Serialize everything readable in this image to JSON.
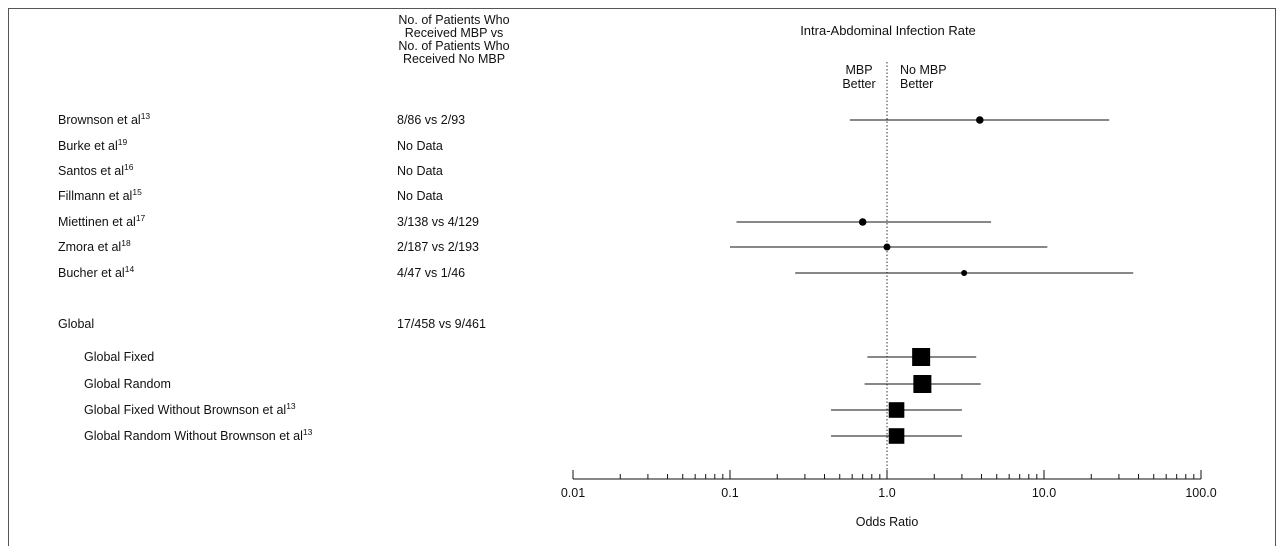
{
  "header": {
    "patients_line1": "No. of Patients Who",
    "patients_line2": "Received MBP vs",
    "patients_line3": "No. of Patients Who",
    "patients_line4": "Received No MBP",
    "plot_title": "Intra-Abdominal Infection Rate",
    "favors_left_line1": "MBP",
    "favors_left_line2": "Better",
    "favors_right_line1": "No MBP",
    "favors_right_line2": "Better"
  },
  "rows": [
    {
      "label": "Brownson et al",
      "ref": "13",
      "counts": "8/86 vs 2/93"
    },
    {
      "label": "Burke et al",
      "ref": "19",
      "counts": "No Data"
    },
    {
      "label": "Santos et al",
      "ref": "16",
      "counts": "No Data"
    },
    {
      "label": "Fillmann et al",
      "ref": "15",
      "counts": "No Data"
    },
    {
      "label": "Miettinen et al",
      "ref": "17",
      "counts": "3/138 vs 4/129"
    },
    {
      "label": "Zmora et al",
      "ref": "18",
      "counts": "2/187 vs 2/193"
    },
    {
      "label": "Bucher et al",
      "ref": "14",
      "counts": "4/47 vs 1/46"
    },
    {
      "label": "Global",
      "ref": "",
      "counts": "17/458 vs 9/461"
    },
    {
      "label": "Global Fixed",
      "ref": "",
      "counts": ""
    },
    {
      "label": "Global Random",
      "ref": "",
      "counts": ""
    },
    {
      "label": "Global Fixed Without Brownson et al",
      "ref": "13",
      "counts": ""
    },
    {
      "label": "Global Random Without Brownson et al",
      "ref": "13",
      "counts": ""
    }
  ],
  "chart_data": {
    "type": "scatter",
    "title": "Intra-Abdominal Infection Rate",
    "xlabel": "Odds Ratio",
    "x_scale": "log",
    "xlim": [
      0.01,
      100
    ],
    "x_ticks": [
      "0.01",
      "0.1",
      "1.0",
      "10.0",
      "100.0"
    ],
    "reference_line": 1.0,
    "points": [
      {
        "study": "Brownson et al13",
        "or": 3.9,
        "ci_low": 0.58,
        "ci_high": 26,
        "marker": "circle",
        "weight": 0.6
      },
      {
        "study": "Miettinen et al17",
        "or": 0.7,
        "ci_low": 0.11,
        "ci_high": 4.6,
        "marker": "circle",
        "weight": 0.6
      },
      {
        "study": "Zmora et al18",
        "or": 1.0,
        "ci_low": 0.1,
        "ci_high": 10.5,
        "marker": "circle",
        "weight": 0.5
      },
      {
        "study": "Bucher et al14",
        "or": 3.1,
        "ci_low": 0.26,
        "ci_high": 37,
        "marker": "circle",
        "weight": 0.35
      },
      {
        "study": "Global Fixed",
        "or": 1.65,
        "ci_low": 0.75,
        "ci_high": 3.7,
        "marker": "square",
        "weight": 1.0
      },
      {
        "study": "Global Random",
        "or": 1.68,
        "ci_low": 0.72,
        "ci_high": 3.95,
        "marker": "square",
        "weight": 1.0
      },
      {
        "study": "Global Fixed Without Brownson et al13",
        "or": 1.15,
        "ci_low": 0.44,
        "ci_high": 3.0,
        "marker": "square",
        "weight": 0.8
      },
      {
        "study": "Global Random Without Brownson et al13",
        "or": 1.15,
        "ci_low": 0.44,
        "ci_high": 3.0,
        "marker": "square",
        "weight": 0.8
      }
    ]
  }
}
